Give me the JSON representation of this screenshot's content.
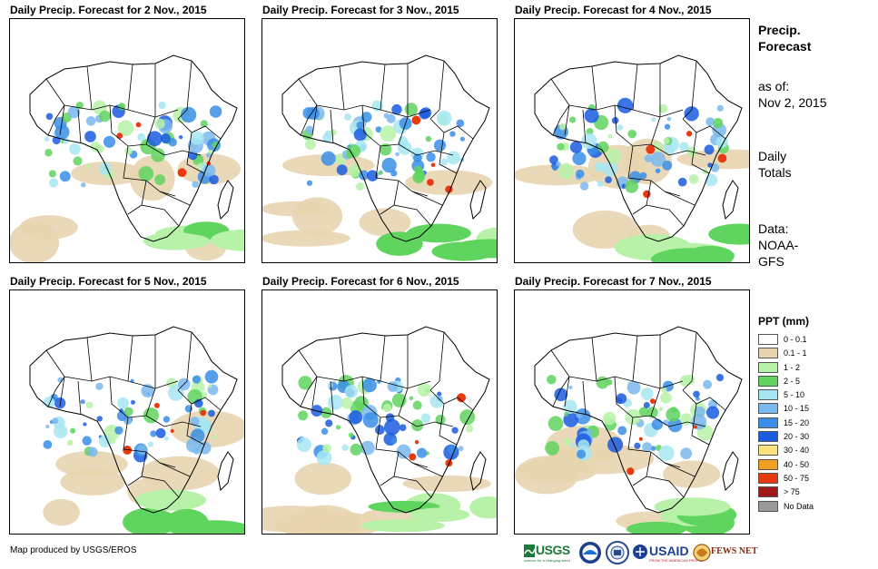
{
  "panels": [
    {
      "title": "Daily Precip. Forecast for 2 Nov., 2015"
    },
    {
      "title": "Daily Precip. Forecast for 3 Nov., 2015"
    },
    {
      "title": "Daily Precip. Forecast for 4 Nov., 2015"
    },
    {
      "title": "Daily Precip. Forecast for 5 Nov., 2015"
    },
    {
      "title": "Daily Precip. Forecast for 6 Nov., 2015"
    },
    {
      "title": "Daily Precip. Forecast for 7 Nov., 2015"
    }
  ],
  "sidebar": {
    "heading_line1": "Precip.",
    "heading_line2": "Forecast",
    "asof_label": "as of:",
    "asof_date": "Nov 2, 2015",
    "totals_line1": "Daily",
    "totals_line2": "Totals",
    "data_line1": "Data:",
    "data_line2": "NOAA-",
    "data_line3": "GFS"
  },
  "legend": {
    "title": "PPT (mm)",
    "items": [
      {
        "label": "0 - 0.1",
        "color": "#ffffff"
      },
      {
        "label": "0.1 - 1",
        "color": "#e8d5b0"
      },
      {
        "label": "1 - 2",
        "color": "#b7f2a8"
      },
      {
        "label": "2 - 5",
        "color": "#5fd45f"
      },
      {
        "label": "5 - 10",
        "color": "#a6e6f2"
      },
      {
        "label": "10 - 15",
        "color": "#7ab8ee"
      },
      {
        "label": "15 - 20",
        "color": "#3a8ee6"
      },
      {
        "label": "20 - 30",
        "color": "#1a5ce0"
      },
      {
        "label": "30 - 40",
        "color": "#f8e27a"
      },
      {
        "label": "40 - 50",
        "color": "#f0a020"
      },
      {
        "label": "50 - 75",
        "color": "#e83a10"
      },
      {
        "label": "> 75",
        "color": "#a01818"
      },
      {
        "label": "No Data",
        "color": "#9a9a9a"
      }
    ]
  },
  "credit": "Map produced by USGS/EROS",
  "logos": {
    "usgs": "USGS",
    "usgs_tagline": "science for a changing world",
    "usaid": "USAID",
    "usaid_tagline": "FROM THE AMERICAN PEOPLE",
    "fewsnet": "FEWS NET"
  }
}
